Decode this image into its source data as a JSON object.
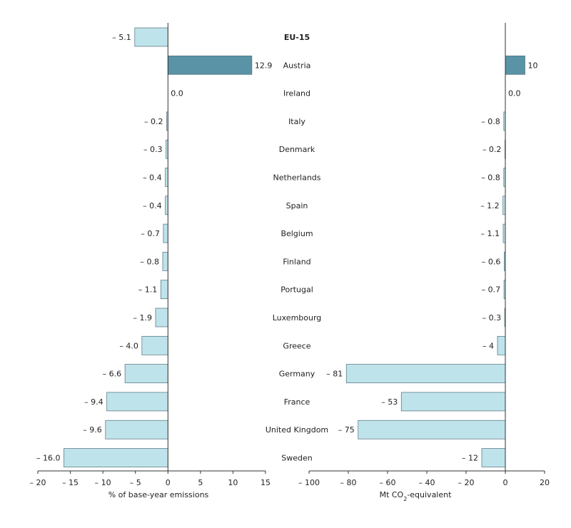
{
  "chart_data": [
    {
      "type": "bar",
      "orientation": "horizontal",
      "categories": [
        "EU-15",
        "Austria",
        "Ireland",
        "Italy",
        "Denmark",
        "Netherlands",
        "Spain",
        "Belgium",
        "Finland",
        "Portugal",
        "Luxembourg",
        "Greece",
        "Germany",
        "France",
        "United Kingdom",
        "Sweden"
      ],
      "values": [
        -5.1,
        12.9,
        0.0,
        -0.2,
        -0.3,
        -0.4,
        -0.4,
        -0.7,
        -0.8,
        -1.1,
        -1.9,
        -4.0,
        -6.6,
        -9.4,
        -9.6,
        -16.0
      ],
      "value_labels": [
        "– 5.1",
        "12.9",
        "0.0",
        "– 0.2",
        "– 0.3",
        "– 0.4",
        "– 0.4",
        "– 0.7",
        "– 0.8",
        "– 1.1",
        "– 1.9",
        "– 4.0",
        "– 6.6",
        "– 9.4",
        "– 9.6",
        "– 16.0"
      ],
      "xlabel": "% of base-year emissions",
      "xlim": [
        -20,
        15
      ],
      "xticks": [
        -20,
        -15,
        -10,
        -5,
        0,
        5,
        10,
        15
      ],
      "xtick_labels": [
        "– 20",
        "– 15",
        "– 10",
        "– 5",
        "0",
        "5",
        "10",
        "15"
      ],
      "grid": false
    },
    {
      "type": "bar",
      "orientation": "horizontal",
      "categories": [
        "EU-15",
        "Austria",
        "Ireland",
        "Italy",
        "Denmark",
        "Netherlands",
        "Spain",
        "Belgium",
        "Finland",
        "Portugal",
        "Luxembourg",
        "Greece",
        "Germany",
        "France",
        "United Kingdom",
        "Sweden"
      ],
      "values": [
        null,
        10,
        0.0,
        -0.8,
        -0.2,
        -0.8,
        -1.2,
        -1.1,
        -0.6,
        -0.7,
        -0.3,
        -4,
        -81,
        -53,
        -75,
        -12
      ],
      "value_labels": [
        "",
        "10",
        "0.0",
        "– 0.8",
        "– 0.2",
        "– 0.8",
        "– 1.2",
        "– 1.1",
        "– 0.6",
        "– 0.7",
        "– 0.3",
        "– 4",
        "– 81",
        "– 53",
        "– 75",
        "– 12"
      ],
      "xlabel": "Mt CO2-equivalent",
      "xlim": [
        -100,
        20
      ],
      "xticks": [
        -100,
        -80,
        -60,
        -40,
        -20,
        0,
        20
      ],
      "xtick_labels": [
        "– 100",
        "– 80",
        "– 60",
        "– 40",
        "– 20",
        "0",
        "20"
      ],
      "grid": false
    }
  ],
  "colors": {
    "positive_fill": "#5a93a6",
    "negative_fill": "#bfe3eb",
    "bar_stroke": "#4f6f7a",
    "axis": "#333333",
    "text": "#222222"
  },
  "highlight_category": "EU-15"
}
